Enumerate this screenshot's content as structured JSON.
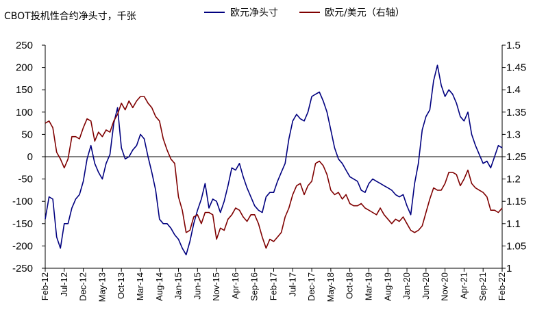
{
  "chart_data": {
    "type": "line",
    "title": "CBOT投机性合约净头寸，千张",
    "legend_position": "top",
    "grid": false,
    "x_ticks": [
      "Feb-12",
      "Jul-12",
      "Dec-12",
      "May-13",
      "Oct-13",
      "Mar-14",
      "Aug-14",
      "Jan-15",
      "Jun-15",
      "Nov-15",
      "Apr-16",
      "Sep-16",
      "Feb-17",
      "Jul-17",
      "Dec-17",
      "May-18",
      "Oct-18",
      "Mar-19",
      "Aug-19",
      "Jan-20",
      "Jun-20",
      "Nov-20",
      "Apr-21",
      "Sep-21",
      "Feb-22"
    ],
    "y_left": {
      "min": -250,
      "max": 250,
      "ticks": [
        "250",
        "200",
        "150",
        "100",
        "50",
        "0",
        "-50",
        "-100",
        "-150",
        "-200",
        "-250"
      ]
    },
    "y_right": {
      "min": 1.0,
      "max": 1.5,
      "ticks": [
        "1.5",
        "1.45",
        "1.4",
        "1.35",
        "1.3",
        "1.25",
        "1.2",
        "1.15",
        "1.1",
        "1.05",
        "1"
      ]
    },
    "series": [
      {
        "name": "欧元净头寸",
        "axis": "left",
        "color": "#00007f",
        "values": [
          [
            "2012-02",
            -140
          ],
          [
            "2012-03",
            -90
          ],
          [
            "2012-04",
            -95
          ],
          [
            "2012-05",
            -180
          ],
          [
            "2012-06",
            -205
          ],
          [
            "2012-07",
            -150
          ],
          [
            "2012-08",
            -150
          ],
          [
            "2012-09",
            -115
          ],
          [
            "2012-10",
            -95
          ],
          [
            "2012-11",
            -85
          ],
          [
            "2012-12",
            -55
          ],
          [
            "2013-01",
            -5
          ],
          [
            "2013-02",
            25
          ],
          [
            "2013-03",
            -15
          ],
          [
            "2013-04",
            -35
          ],
          [
            "2013-05",
            -50
          ],
          [
            "2013-06",
            -15
          ],
          [
            "2013-07",
            5
          ],
          [
            "2013-08",
            75
          ],
          [
            "2013-09",
            110
          ],
          [
            "2013-10",
            20
          ],
          [
            "2013-11",
            -5
          ],
          [
            "2013-12",
            0
          ],
          [
            "2014-01",
            15
          ],
          [
            "2014-02",
            25
          ],
          [
            "2014-03",
            50
          ],
          [
            "2014-04",
            40
          ],
          [
            "2014-05",
            0
          ],
          [
            "2014-06",
            -35
          ],
          [
            "2014-07",
            -75
          ],
          [
            "2014-08",
            -140
          ],
          [
            "2014-09",
            -150
          ],
          [
            "2014-10",
            -150
          ],
          [
            "2014-11",
            -160
          ],
          [
            "2014-12",
            -175
          ],
          [
            "2015-01",
            -185
          ],
          [
            "2015-02",
            -205
          ],
          [
            "2015-03",
            -220
          ],
          [
            "2015-04",
            -190
          ],
          [
            "2015-05",
            -150
          ],
          [
            "2015-06",
            -120
          ],
          [
            "2015-07",
            -95
          ],
          [
            "2015-08",
            -60
          ],
          [
            "2015-09",
            -115
          ],
          [
            "2015-10",
            -95
          ],
          [
            "2015-11",
            -100
          ],
          [
            "2015-12",
            -125
          ],
          [
            "2016-01",
            -100
          ],
          [
            "2016-02",
            -65
          ],
          [
            "2016-03",
            -25
          ],
          [
            "2016-04",
            -30
          ],
          [
            "2016-05",
            -15
          ],
          [
            "2016-06",
            -45
          ],
          [
            "2016-07",
            -70
          ],
          [
            "2016-08",
            -90
          ],
          [
            "2016-09",
            -110
          ],
          [
            "2016-10",
            -120
          ],
          [
            "2016-11",
            -125
          ],
          [
            "2016-12",
            -90
          ],
          [
            "2017-01",
            -80
          ],
          [
            "2017-02",
            -80
          ],
          [
            "2017-03",
            -55
          ],
          [
            "2017-04",
            -35
          ],
          [
            "2017-05",
            -15
          ],
          [
            "2017-06",
            40
          ],
          [
            "2017-07",
            80
          ],
          [
            "2017-08",
            95
          ],
          [
            "2017-09",
            85
          ],
          [
            "2017-10",
            80
          ],
          [
            "2017-11",
            100
          ],
          [
            "2017-12",
            135
          ],
          [
            "2018-01",
            140
          ],
          [
            "2018-02",
            145
          ],
          [
            "2018-03",
            125
          ],
          [
            "2018-04",
            100
          ],
          [
            "2018-05",
            60
          ],
          [
            "2018-06",
            20
          ],
          [
            "2018-07",
            -5
          ],
          [
            "2018-08",
            -15
          ],
          [
            "2018-09",
            -30
          ],
          [
            "2018-10",
            -45
          ],
          [
            "2018-11",
            -50
          ],
          [
            "2018-12",
            -55
          ],
          [
            "2019-01",
            -75
          ],
          [
            "2019-02",
            -80
          ],
          [
            "2019-03",
            -60
          ],
          [
            "2019-04",
            -50
          ],
          [
            "2019-05",
            -55
          ],
          [
            "2019-06",
            -60
          ],
          [
            "2019-07",
            -65
          ],
          [
            "2019-08",
            -70
          ],
          [
            "2019-09",
            -75
          ],
          [
            "2019-10",
            -85
          ],
          [
            "2019-11",
            -90
          ],
          [
            "2019-12",
            -85
          ],
          [
            "2020-01",
            -110
          ],
          [
            "2020-02",
            -130
          ],
          [
            "2020-03",
            -60
          ],
          [
            "2020-04",
            -15
          ],
          [
            "2020-05",
            60
          ],
          [
            "2020-06",
            90
          ],
          [
            "2020-07",
            105
          ],
          [
            "2020-08",
            170
          ],
          [
            "2020-09",
            205
          ],
          [
            "2020-10",
            160
          ],
          [
            "2020-11",
            135
          ],
          [
            "2020-12",
            150
          ],
          [
            "2021-01",
            140
          ],
          [
            "2021-02",
            120
          ],
          [
            "2021-03",
            90
          ],
          [
            "2021-04",
            80
          ],
          [
            "2021-05",
            100
          ],
          [
            "2021-06",
            50
          ],
          [
            "2021-07",
            25
          ],
          [
            "2021-08",
            5
          ],
          [
            "2021-09",
            -15
          ],
          [
            "2021-10",
            -10
          ],
          [
            "2021-11",
            -25
          ],
          [
            "2021-12",
            0
          ],
          [
            "2022-01",
            25
          ],
          [
            "2022-02",
            20
          ]
        ]
      },
      {
        "name": "欧元/美元（右轴）",
        "axis": "right",
        "color": "#7f0000",
        "values": [
          [
            "2012-02",
            1.325
          ],
          [
            "2012-03",
            1.33
          ],
          [
            "2012-04",
            1.315
          ],
          [
            "2012-05",
            1.26
          ],
          [
            "2012-06",
            1.245
          ],
          [
            "2012-07",
            1.225
          ],
          [
            "2012-08",
            1.245
          ],
          [
            "2012-09",
            1.295
          ],
          [
            "2012-10",
            1.295
          ],
          [
            "2012-11",
            1.29
          ],
          [
            "2012-12",
            1.315
          ],
          [
            "2013-01",
            1.335
          ],
          [
            "2013-02",
            1.33
          ],
          [
            "2013-03",
            1.285
          ],
          [
            "2013-04",
            1.305
          ],
          [
            "2013-05",
            1.295
          ],
          [
            "2013-06",
            1.31
          ],
          [
            "2013-07",
            1.305
          ],
          [
            "2013-08",
            1.33
          ],
          [
            "2013-09",
            1.345
          ],
          [
            "2013-10",
            1.37
          ],
          [
            "2013-11",
            1.355
          ],
          [
            "2013-12",
            1.375
          ],
          [
            "2014-01",
            1.36
          ],
          [
            "2014-02",
            1.375
          ],
          [
            "2014-03",
            1.385
          ],
          [
            "2014-04",
            1.385
          ],
          [
            "2014-05",
            1.37
          ],
          [
            "2014-06",
            1.36
          ],
          [
            "2014-07",
            1.34
          ],
          [
            "2014-08",
            1.33
          ],
          [
            "2014-09",
            1.29
          ],
          [
            "2014-10",
            1.265
          ],
          [
            "2014-11",
            1.245
          ],
          [
            "2014-12",
            1.235
          ],
          [
            "2015-01",
            1.16
          ],
          [
            "2015-02",
            1.13
          ],
          [
            "2015-03",
            1.08
          ],
          [
            "2015-04",
            1.085
          ],
          [
            "2015-05",
            1.115
          ],
          [
            "2015-06",
            1.12
          ],
          [
            "2015-07",
            1.1
          ],
          [
            "2015-08",
            1.125
          ],
          [
            "2015-09",
            1.125
          ],
          [
            "2015-10",
            1.12
          ],
          [
            "2015-11",
            1.065
          ],
          [
            "2015-12",
            1.09
          ],
          [
            "2016-01",
            1.085
          ],
          [
            "2016-02",
            1.11
          ],
          [
            "2016-03",
            1.12
          ],
          [
            "2016-04",
            1.135
          ],
          [
            "2016-05",
            1.13
          ],
          [
            "2016-06",
            1.115
          ],
          [
            "2016-07",
            1.105
          ],
          [
            "2016-08",
            1.12
          ],
          [
            "2016-09",
            1.12
          ],
          [
            "2016-10",
            1.1
          ],
          [
            "2016-11",
            1.07
          ],
          [
            "2016-12",
            1.045
          ],
          [
            "2017-01",
            1.065
          ],
          [
            "2017-02",
            1.06
          ],
          [
            "2017-03",
            1.07
          ],
          [
            "2017-04",
            1.08
          ],
          [
            "2017-05",
            1.115
          ],
          [
            "2017-06",
            1.135
          ],
          [
            "2017-07",
            1.165
          ],
          [
            "2017-08",
            1.185
          ],
          [
            "2017-09",
            1.19
          ],
          [
            "2017-10",
            1.165
          ],
          [
            "2017-11",
            1.185
          ],
          [
            "2017-12",
            1.195
          ],
          [
            "2018-01",
            1.235
          ],
          [
            "2018-02",
            1.24
          ],
          [
            "2018-03",
            1.23
          ],
          [
            "2018-04",
            1.21
          ],
          [
            "2018-05",
            1.175
          ],
          [
            "2018-06",
            1.165
          ],
          [
            "2018-07",
            1.17
          ],
          [
            "2018-08",
            1.155
          ],
          [
            "2018-09",
            1.165
          ],
          [
            "2018-10",
            1.145
          ],
          [
            "2018-11",
            1.14
          ],
          [
            "2018-12",
            1.14
          ],
          [
            "2019-01",
            1.145
          ],
          [
            "2019-02",
            1.135
          ],
          [
            "2019-03",
            1.13
          ],
          [
            "2019-04",
            1.125
          ],
          [
            "2019-05",
            1.12
          ],
          [
            "2019-06",
            1.135
          ],
          [
            "2019-07",
            1.12
          ],
          [
            "2019-08",
            1.11
          ],
          [
            "2019-09",
            1.1
          ],
          [
            "2019-10",
            1.11
          ],
          [
            "2019-11",
            1.105
          ],
          [
            "2019-12",
            1.115
          ],
          [
            "2020-01",
            1.1
          ],
          [
            "2020-02",
            1.085
          ],
          [
            "2020-03",
            1.08
          ],
          [
            "2020-04",
            1.085
          ],
          [
            "2020-05",
            1.095
          ],
          [
            "2020-06",
            1.125
          ],
          [
            "2020-07",
            1.155
          ],
          [
            "2020-08",
            1.18
          ],
          [
            "2020-09",
            1.175
          ],
          [
            "2020-10",
            1.175
          ],
          [
            "2020-11",
            1.19
          ],
          [
            "2020-12",
            1.215
          ],
          [
            "2021-01",
            1.215
          ],
          [
            "2021-02",
            1.21
          ],
          [
            "2021-03",
            1.185
          ],
          [
            "2021-04",
            1.2
          ],
          [
            "2021-05",
            1.22
          ],
          [
            "2021-06",
            1.19
          ],
          [
            "2021-07",
            1.18
          ],
          [
            "2021-08",
            1.175
          ],
          [
            "2021-09",
            1.17
          ],
          [
            "2021-10",
            1.16
          ],
          [
            "2021-11",
            1.13
          ],
          [
            "2021-12",
            1.13
          ],
          [
            "2022-01",
            1.125
          ],
          [
            "2022-02",
            1.135
          ]
        ]
      }
    ]
  }
}
